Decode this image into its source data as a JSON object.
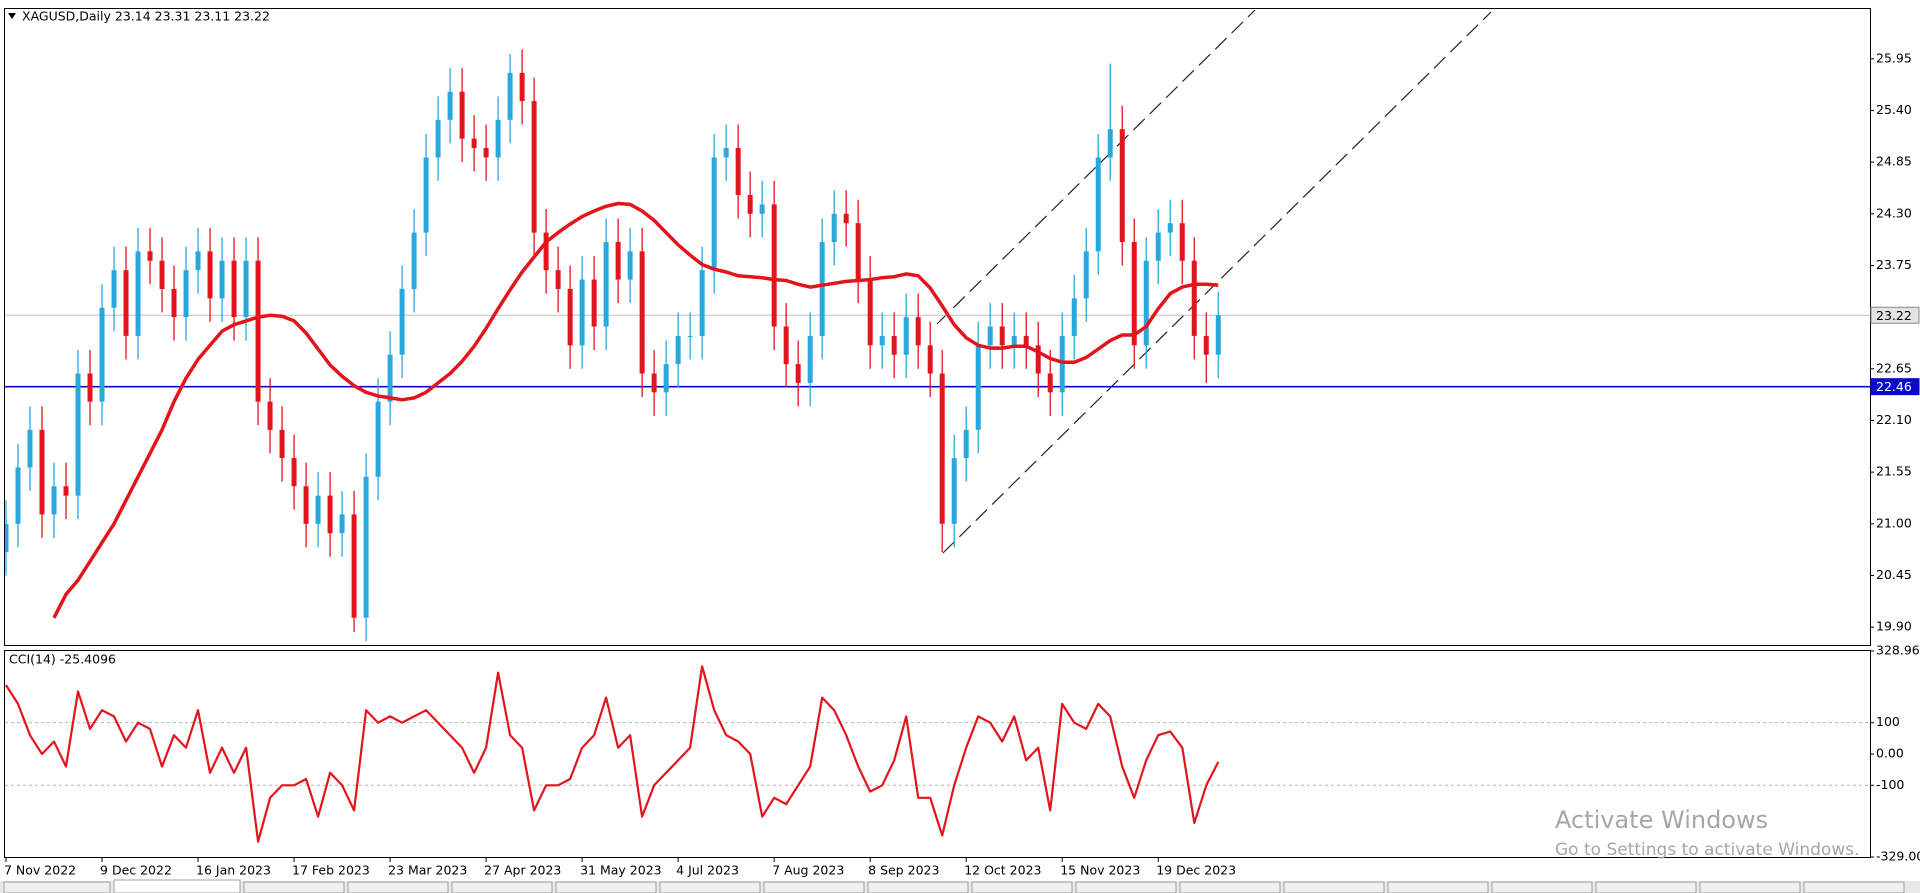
{
  "chart_data": [
    {
      "type": "candlestick",
      "title": "XAGUSD,Daily  23.14 23.31 23.11 23.22",
      "up_color": "#29a8df",
      "down_color": "#e3141c",
      "open": [
        20.7,
        21.0,
        21.6,
        22.0,
        21.1,
        21.4,
        21.3,
        22.6,
        22.3,
        23.3,
        23.7,
        23.0,
        23.9,
        23.8,
        23.5,
        23.2,
        23.7,
        23.9,
        23.4,
        23.8,
        23.2,
        23.8,
        22.3,
        22.0,
        21.7,
        21.4,
        21.0,
        21.3,
        20.9,
        21.1,
        20.0,
        21.5,
        22.3,
        22.8,
        23.5,
        24.1,
        24.9,
        25.3,
        25.6,
        25.1,
        25.0,
        24.9,
        25.3,
        25.8,
        25.5,
        24.1,
        23.7,
        23.5,
        22.9,
        23.6,
        23.1,
        24.0,
        23.6,
        23.9,
        22.6,
        22.4,
        22.7,
        23.0,
        23.0,
        23.7,
        24.9,
        25.0,
        24.5,
        24.3,
        24.4,
        23.1,
        22.7,
        22.5,
        23.0,
        24.0,
        24.3,
        24.2,
        23.6,
        22.9,
        23.0,
        22.8,
        23.2,
        22.9,
        22.6,
        21.0,
        21.7,
        22.0,
        22.9,
        23.1,
        22.9,
        23.0,
        22.9,
        22.6,
        22.4,
        23.0,
        23.4,
        23.9,
        24.9,
        25.2,
        24.0,
        22.9,
        23.8,
        24.1,
        24.2,
        23.8,
        23.0,
        22.8
      ],
      "high": [
        21.25,
        21.85,
        22.25,
        22.25,
        21.65,
        21.65,
        22.85,
        22.85,
        23.55,
        23.95,
        23.95,
        24.15,
        24.15,
        24.05,
        23.75,
        23.95,
        24.15,
        24.15,
        24.05,
        24.05,
        24.05,
        24.05,
        22.55,
        22.25,
        21.95,
        21.65,
        21.55,
        21.55,
        21.35,
        21.35,
        21.75,
        22.55,
        23.05,
        23.75,
        24.35,
        25.15,
        25.55,
        25.85,
        25.85,
        25.35,
        25.25,
        25.55,
        26.0,
        26.05,
        25.75,
        24.35,
        23.95,
        23.75,
        23.85,
        23.85,
        24.25,
        24.25,
        24.15,
        24.15,
        22.85,
        22.95,
        23.25,
        23.25,
        23.95,
        25.15,
        25.25,
        25.25,
        24.75,
        24.65,
        24.65,
        23.35,
        22.95,
        23.25,
        24.25,
        24.55,
        24.55,
        24.45,
        23.85,
        23.25,
        23.25,
        23.45,
        23.45,
        23.15,
        22.85,
        21.95,
        22.25,
        23.15,
        23.35,
        23.35,
        23.25,
        23.25,
        23.15,
        22.85,
        23.25,
        23.65,
        24.15,
        25.15,
        25.9,
        25.45,
        24.25,
        24.05,
        24.35,
        24.45,
        24.45,
        24.05,
        23.25,
        23.47
      ],
      "low": [
        20.45,
        20.75,
        21.35,
        20.85,
        20.85,
        21.05,
        21.05,
        22.05,
        22.05,
        23.05,
        22.75,
        22.75,
        23.55,
        23.25,
        22.95,
        22.95,
        23.45,
        23.15,
        23.15,
        22.95,
        22.95,
        22.05,
        21.75,
        21.45,
        21.15,
        20.75,
        20.75,
        20.65,
        20.65,
        19.85,
        19.75,
        21.25,
        22.05,
        22.55,
        23.25,
        23.85,
        24.65,
        25.05,
        24.85,
        24.75,
        24.65,
        24.65,
        25.05,
        25.25,
        23.85,
        23.45,
        23.25,
        22.65,
        22.65,
        22.85,
        22.85,
        23.35,
        23.35,
        22.35,
        22.15,
        22.15,
        22.45,
        22.75,
        22.75,
        23.45,
        24.65,
        24.25,
        24.05,
        24.05,
        22.85,
        22.45,
        22.25,
        22.25,
        22.75,
        23.75,
        23.95,
        23.35,
        22.65,
        22.65,
        22.55,
        22.55,
        22.65,
        22.35,
        20.7,
        20.75,
        21.45,
        21.75,
        22.65,
        22.65,
        22.65,
        22.65,
        22.35,
        22.15,
        22.15,
        22.75,
        23.15,
        23.65,
        24.65,
        23.75,
        22.65,
        22.65,
        23.55,
        23.85,
        23.55,
        22.75,
        22.5,
        22.55
      ],
      "close": [
        21.0,
        21.6,
        22.0,
        21.1,
        21.4,
        21.3,
        22.6,
        22.3,
        23.3,
        23.7,
        23.0,
        23.9,
        23.8,
        23.5,
        23.2,
        23.7,
        23.9,
        23.4,
        23.8,
        23.2,
        23.8,
        22.3,
        22.0,
        21.7,
        21.4,
        21.0,
        21.3,
        20.9,
        21.1,
        20.0,
        21.5,
        22.3,
        22.8,
        23.5,
        24.1,
        24.9,
        25.3,
        25.6,
        25.1,
        25.0,
        24.9,
        25.3,
        25.8,
        25.5,
        24.1,
        23.7,
        23.5,
        22.9,
        23.6,
        23.1,
        24.0,
        23.6,
        23.9,
        22.6,
        22.4,
        22.7,
        23.0,
        23.0,
        23.7,
        24.9,
        25.0,
        24.5,
        24.3,
        24.4,
        23.1,
        22.7,
        22.5,
        23.0,
        24.0,
        24.3,
        24.2,
        23.6,
        22.9,
        23.0,
        22.8,
        23.2,
        22.9,
        22.6,
        21.0,
        21.7,
        22.0,
        22.9,
        23.1,
        22.9,
        23.0,
        22.9,
        22.6,
        22.4,
        23.0,
        23.4,
        23.9,
        24.9,
        25.2,
        24.0,
        22.9,
        23.8,
        24.1,
        24.2,
        23.8,
        23.0,
        22.8,
        23.22
      ],
      "moving_average": {
        "color": "#e3141c",
        "values": [
          null,
          null,
          null,
          null,
          20.0,
          20.25,
          20.4,
          20.6,
          20.8,
          21.0,
          21.25,
          21.5,
          21.75,
          22.0,
          22.3,
          22.55,
          22.75,
          22.9,
          23.05,
          23.12,
          23.16,
          23.2,
          23.22,
          23.21,
          23.16,
          23.03,
          22.86,
          22.69,
          22.57,
          22.47,
          22.4,
          22.36,
          22.34,
          22.32,
          22.34,
          22.4,
          22.5,
          22.6,
          22.73,
          22.89,
          23.08,
          23.29,
          23.49,
          23.68,
          23.84,
          24.0,
          24.1,
          24.19,
          24.27,
          24.33,
          24.38,
          24.41,
          24.4,
          24.33,
          24.23,
          24.1,
          23.97,
          23.86,
          23.76,
          23.71,
          23.68,
          23.64,
          23.63,
          23.62,
          23.6,
          23.59,
          23.55,
          23.52,
          23.54,
          23.56,
          23.58,
          23.59,
          23.6,
          23.62,
          23.63,
          23.66,
          23.64,
          23.51,
          23.32,
          23.12,
          22.98,
          22.9,
          22.87,
          22.87,
          22.89,
          22.89,
          22.83,
          22.76,
          22.72,
          22.72,
          22.77,
          22.86,
          22.95,
          23.01,
          23.01,
          23.1,
          23.29,
          23.45,
          23.52,
          23.55,
          23.55,
          23.54
        ]
      },
      "xlim": [
        0,
        155.3
      ],
      "xticks": [
        {
          "value": 0,
          "label": "7 Nov 2022"
        },
        {
          "value": 8,
          "label": "9 Dec 2022"
        },
        {
          "value": 16,
          "label": "16 Jan 2023"
        },
        {
          "value": 24,
          "label": "17 Feb 2023"
        },
        {
          "value": 32,
          "label": "23 Mar 2023"
        },
        {
          "value": 40,
          "label": "27 Apr 2023"
        },
        {
          "value": 48,
          "label": "31 May 2023"
        },
        {
          "value": 56,
          "label": "4 Jul 2023"
        },
        {
          "value": 64,
          "label": "7 Aug 2023"
        },
        {
          "value": 72,
          "label": "8 Sep 2023"
        },
        {
          "value": 80,
          "label": "12 Oct 2023"
        },
        {
          "value": 88,
          "label": "15 Nov 2023"
        },
        {
          "value": 96,
          "label": "19 Dec 2023"
        }
      ],
      "ylim": [
        19.71,
        26.48
      ],
      "yticks": [
        {
          "value": 19.9,
          "label": "19.90"
        },
        {
          "value": 20.45,
          "label": "20.45"
        },
        {
          "value": 21,
          "label": "21.00"
        },
        {
          "value": 21.55,
          "label": "21.55"
        },
        {
          "value": 22.1,
          "label": "22.10"
        },
        {
          "value": 22.65,
          "label": "22.65"
        },
        {
          "value": 23.75,
          "label": "23.75"
        },
        {
          "value": 24.3,
          "label": "24.30"
        },
        {
          "value": 24.85,
          "label": "24.85"
        },
        {
          "value": 25.4,
          "label": "25.40"
        },
        {
          "value": 25.95,
          "label": "25.95"
        }
      ],
      "bid_line": {
        "value": 23.22,
        "label": "23.22",
        "color": "#c0c0c0"
      },
      "hline": {
        "value": 22.46,
        "label": "22.46",
        "color": "#0a0ac8"
      }
    },
    {
      "type": "line",
      "title": "CCI(14) -25.4096",
      "color": "#e3141c",
      "values": [
        220,
        160,
        60,
        0,
        40,
        -40,
        200,
        80,
        140,
        120,
        40,
        100,
        80,
        -40,
        60,
        20,
        140,
        -60,
        20,
        -60,
        20,
        -280,
        -140,
        -100,
        -100,
        -80,
        -200,
        -60,
        -100,
        -180,
        140,
        100,
        120,
        100,
        120,
        140,
        100,
        60,
        20,
        -60,
        20,
        260,
        60,
        20,
        -180,
        -100,
        -100,
        -80,
        20,
        60,
        180,
        20,
        60,
        -200,
        -100,
        -60,
        -20,
        20,
        280,
        140,
        60,
        40,
        0,
        -200,
        -140,
        -160,
        -100,
        -40,
        180,
        140,
        60,
        -40,
        -120,
        -100,
        -20,
        120,
        -140,
        -140,
        -260,
        -100,
        20,
        120,
        100,
        40,
        120,
        -20,
        20,
        -180,
        160,
        100,
        80,
        160,
        120,
        -40,
        -140,
        -20,
        60,
        72,
        20,
        -220,
        -100,
        -25.4096
      ],
      "ylim": [
        -329,
        328.964
      ],
      "yticks": [
        328.964,
        100,
        {
          "value": 0,
          "label": "0.00"
        },
        -100,
        {
          "value": -329,
          "label": "-329.000"
        }
      ],
      "levels": [
        100,
        -100
      ]
    }
  ],
  "watermark": {
    "title": "Activate Windows",
    "subtitle": "Go to Settings to activate Windows."
  }
}
